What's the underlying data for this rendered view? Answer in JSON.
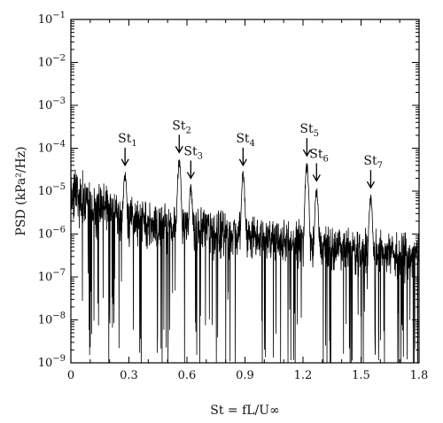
{
  "chart_data": {
    "type": "line",
    "title": "",
    "xlabel": "St = fL/U∞",
    "ylabel": "PSD (kPa²/Hz)",
    "xlim": [
      0,
      1.8
    ],
    "ylim": [
      1e-09,
      0.1
    ],
    "yscale": "log",
    "grid": false,
    "x_ticks": [
      0,
      0.3,
      0.6,
      0.9,
      1.2,
      1.5,
      1.8
    ],
    "x_tick_labels": [
      "0",
      "0.3",
      "0.6",
      "0.9",
      "1.2",
      "1.5",
      "1.8"
    ],
    "y_ticks_exp": [
      -9,
      -8,
      -7,
      -6,
      -5,
      -4,
      -3,
      -2,
      -1
    ],
    "series": [
      {
        "color": "#000000",
        "baseline_envelope": {
          "x": [
            0,
            0.1,
            0.2,
            0.3,
            0.4,
            0.5,
            0.6,
            0.7,
            0.8,
            0.9,
            1.0,
            1.1,
            1.2,
            1.3,
            1.4,
            1.5,
            1.6,
            1.7,
            1.8
          ],
          "upper": [
            4e-05,
            2e-05,
            1.2e-05,
            8e-06,
            6e-06,
            5e-06,
            4e-06,
            3.5e-06,
            3e-06,
            3e-06,
            2.5e-06,
            2.2e-06,
            2e-06,
            1.8e-06,
            1.5e-06,
            1.3e-06,
            1.2e-06,
            1.1e-06,
            1e-06
          ],
          "median": [
            3e-06,
            2e-06,
            1.5e-06,
            1.2e-06,
            1e-06,
            8e-07,
            7e-07,
            6e-07,
            5e-07,
            5e-07,
            4.5e-07,
            4e-07,
            3.5e-07,
            3e-07,
            2.8e-07,
            2.5e-07,
            2.2e-07,
            2e-07,
            1.8e-07
          ]
        },
        "peaks": [
          {
            "label": "St1",
            "x": 0.28,
            "value": 3e-05
          },
          {
            "label": "St2",
            "x": 0.56,
            "value": 6e-05
          },
          {
            "label": "St3",
            "x": 0.62,
            "value": 1.5e-05
          },
          {
            "label": "St4",
            "x": 0.89,
            "value": 3e-05
          },
          {
            "label": "St5",
            "x": 1.22,
            "value": 5e-05
          },
          {
            "label": "St6",
            "x": 1.27,
            "value": 1.3e-05
          },
          {
            "label": "St7",
            "x": 1.55,
            "value": 9e-06
          }
        ]
      }
    ],
    "annotations": [
      {
        "base": "St",
        "sub": "1"
      },
      {
        "base": "St",
        "sub": "2"
      },
      {
        "base": "St",
        "sub": "3"
      },
      {
        "base": "St",
        "sub": "4"
      },
      {
        "base": "St",
        "sub": "5"
      },
      {
        "base": "St",
        "sub": "6"
      },
      {
        "base": "St",
        "sub": "7"
      }
    ]
  }
}
